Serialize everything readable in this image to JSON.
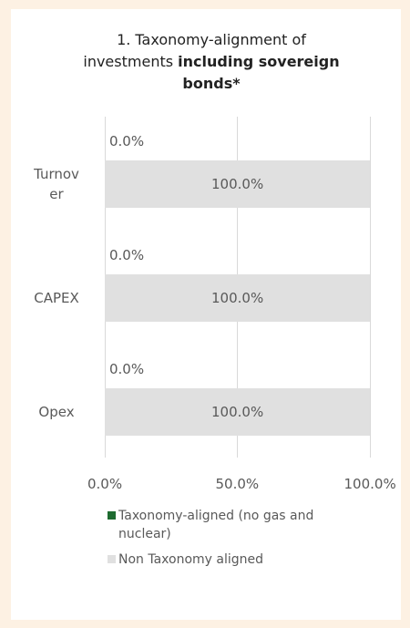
{
  "chart_data": {
    "type": "stacked_bar_horizontal",
    "title": "1. Taxonomy-alignment of investments",
    "title_emphasis": "including sovereign bonds*",
    "categories": [
      "Turnover",
      "CAPEX",
      "Opex"
    ],
    "series": [
      {
        "name": "Taxonomy-aligned (no gas and nuclear)",
        "color": "#1e6b30",
        "values": [
          0,
          0,
          0
        ],
        "value_labels": [
          "0.0%",
          "0.0%",
          "0.0%"
        ]
      },
      {
        "name": "Non Taxonomy aligned",
        "color": "#e0e0e0",
        "values": [
          100,
          100,
          100
        ],
        "value_labels": [
          "100.0%",
          "100.0%",
          "100.0%"
        ]
      }
    ],
    "xlim": [
      0,
      100
    ],
    "xticks": [
      {
        "value": 0,
        "label": "0.0%"
      },
      {
        "value": 50,
        "label": "50.0%"
      },
      {
        "value": 100,
        "label": "100.0%"
      }
    ],
    "grid": true
  }
}
